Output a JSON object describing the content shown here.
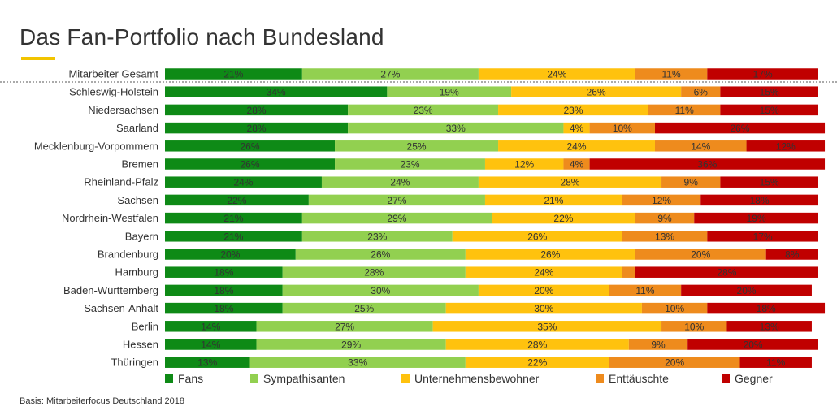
{
  "title": "Das Fan-Portfolio nach Bundesland",
  "source_note": "Basis: Mitarbeiterfocus Deutschland 2018",
  "chart_data": {
    "type": "bar",
    "orientation": "horizontal",
    "stacked": "100%",
    "title": "Das Fan-Portfolio nach Bundesland",
    "value_suffix": "%",
    "legend_position": "bottom",
    "grid": false,
    "categories": [
      "Mitarbeiter Gesamt",
      "Schleswig-Holstein",
      "Niedersachsen",
      "Saarland",
      "Mecklenburg-Vorpommern",
      "Bremen",
      "Rheinland-Pfalz",
      "Sachsen",
      "Nordrhein-Westfalen",
      "Bayern",
      "Brandenburg",
      "Hamburg",
      "Baden-Württemberg",
      "Sachsen-Anhalt",
      "Berlin",
      "Hessen",
      "Thüringen"
    ],
    "series": [
      {
        "name": "Fans",
        "color": "#0e8a16",
        "values": [
          21,
          34,
          28,
          28,
          26,
          26,
          24,
          22,
          21,
          21,
          20,
          18,
          18,
          18,
          14,
          14,
          13
        ]
      },
      {
        "name": "Sympathisanten",
        "color": "#92d050",
        "values": [
          27,
          19,
          23,
          33,
          25,
          23,
          24,
          27,
          29,
          23,
          26,
          28,
          30,
          25,
          27,
          29,
          33
        ]
      },
      {
        "name": "Unternehmensbewohner",
        "color": "#ffc20e",
        "values": [
          24,
          26,
          23,
          4,
          24,
          12,
          28,
          21,
          22,
          26,
          26,
          24,
          20,
          30,
          35,
          28,
          22
        ]
      },
      {
        "name": "Enttäuschte",
        "color": "#ee8b1d",
        "values": [
          11,
          6,
          11,
          10,
          14,
          4,
          9,
          12,
          9,
          13,
          20,
          2,
          11,
          10,
          10,
          9,
          20
        ]
      },
      {
        "name": "Gegner",
        "color": "#c00000",
        "values": [
          17,
          15,
          15,
          26,
          12,
          36,
          15,
          18,
          19,
          17,
          8,
          28,
          20,
          18,
          13,
          20,
          11
        ]
      }
    ],
    "hidden_labels": [
      [
        11,
        3
      ]
    ]
  }
}
